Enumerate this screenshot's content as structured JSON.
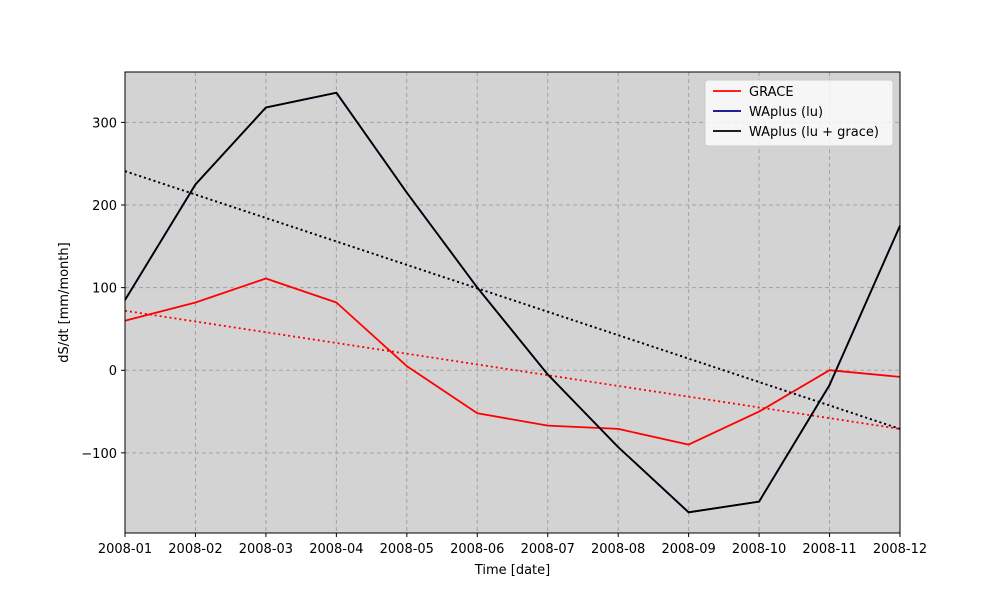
{
  "chart_data": {
    "type": "line",
    "xlabel": "Time [date]",
    "ylabel": "dS/dt [mm/month]",
    "x": [
      "2008-01",
      "2008-02",
      "2008-03",
      "2008-04",
      "2008-05",
      "2008-06",
      "2008-07",
      "2008-08",
      "2008-09",
      "2008-10",
      "2008-11",
      "2008-12"
    ],
    "xlim": [
      "2008-01",
      "2008-12"
    ],
    "ylim": [
      -197,
      361
    ],
    "yticks": [
      -100,
      0,
      100,
      200,
      300
    ],
    "ytick_labels": [
      "−100",
      "0",
      "100",
      "200",
      "300"
    ],
    "grid": true,
    "grid_color": "#a3a3a3",
    "plot_background": "#d3d3d3",
    "legend_position": "top-right",
    "series": [
      {
        "name": "GRACE",
        "color": "#ff0000",
        "values": [
          60,
          82,
          111,
          82,
          5,
          -52,
          -67,
          -71,
          -90,
          -50,
          0,
          -8
        ],
        "trend": [
          72,
          -71
        ]
      },
      {
        "name": "WAplus (lu)",
        "color": "#00008b",
        "values": [
          85,
          225,
          318,
          336,
          215,
          100,
          -5,
          -93,
          -172,
          -159,
          -18,
          175
        ],
        "trend": [
          241,
          -71
        ]
      },
      {
        "name": "WAplus (lu + grace)",
        "color": "#000000",
        "values": [
          85,
          225,
          318,
          336,
          215,
          100,
          -5,
          -93,
          -172,
          -159,
          -18,
          175
        ],
        "trend": [
          241,
          -71
        ]
      }
    ]
  }
}
